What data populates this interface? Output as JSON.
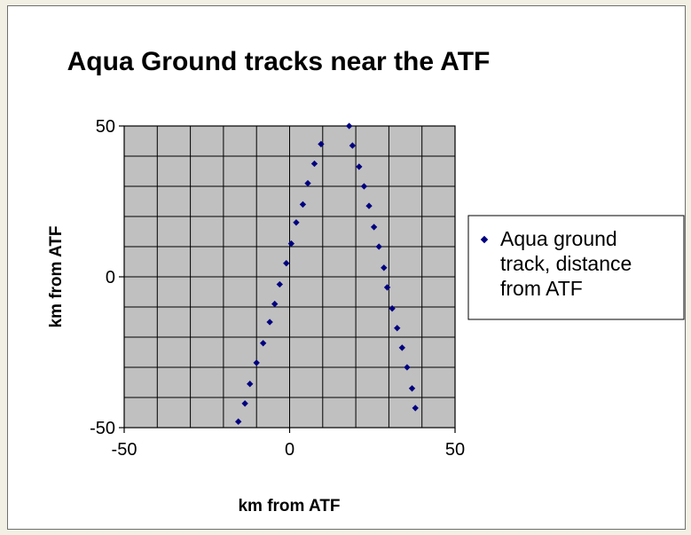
{
  "chart_data": {
    "type": "scatter",
    "title": "Aqua Ground tracks near the ATF",
    "xlabel": "km from ATF",
    "ylabel": "km from ATF",
    "xlim": [
      -50,
      50
    ],
    "ylim": [
      -50,
      50
    ],
    "xticks": [
      -50,
      0,
      50
    ],
    "yticks": [
      -50,
      0,
      50
    ],
    "grid": true,
    "plot_background": "#c0c0c0",
    "marker_color": "#00007f",
    "legend_position": "right",
    "series": [
      {
        "name": "Aqua ground track, distance from ATF",
        "points": [
          [
            -15.5,
            -48
          ],
          [
            -13.5,
            -42
          ],
          [
            -12,
            -35.5
          ],
          [
            -10,
            -28.5
          ],
          [
            -8,
            -22
          ],
          [
            -6,
            -15
          ],
          [
            -4.5,
            -9
          ],
          [
            -3,
            -2.5
          ],
          [
            -1,
            4.5
          ],
          [
            0.5,
            11
          ],
          [
            2,
            18
          ],
          [
            4,
            24
          ],
          [
            5.5,
            31
          ],
          [
            7.5,
            37.5
          ],
          [
            9.5,
            44
          ],
          [
            18,
            50
          ],
          [
            19,
            43.5
          ],
          [
            21,
            36.5
          ],
          [
            22.5,
            30
          ],
          [
            24,
            23.5
          ],
          [
            25.5,
            16.5
          ],
          [
            27,
            10
          ],
          [
            28.5,
            3
          ],
          [
            29.5,
            -3.5
          ],
          [
            31,
            -10.5
          ],
          [
            32.5,
            -17
          ],
          [
            34,
            -23.5
          ],
          [
            35.5,
            -30
          ],
          [
            37,
            -37
          ],
          [
            38,
            -43.5
          ]
        ]
      }
    ]
  }
}
